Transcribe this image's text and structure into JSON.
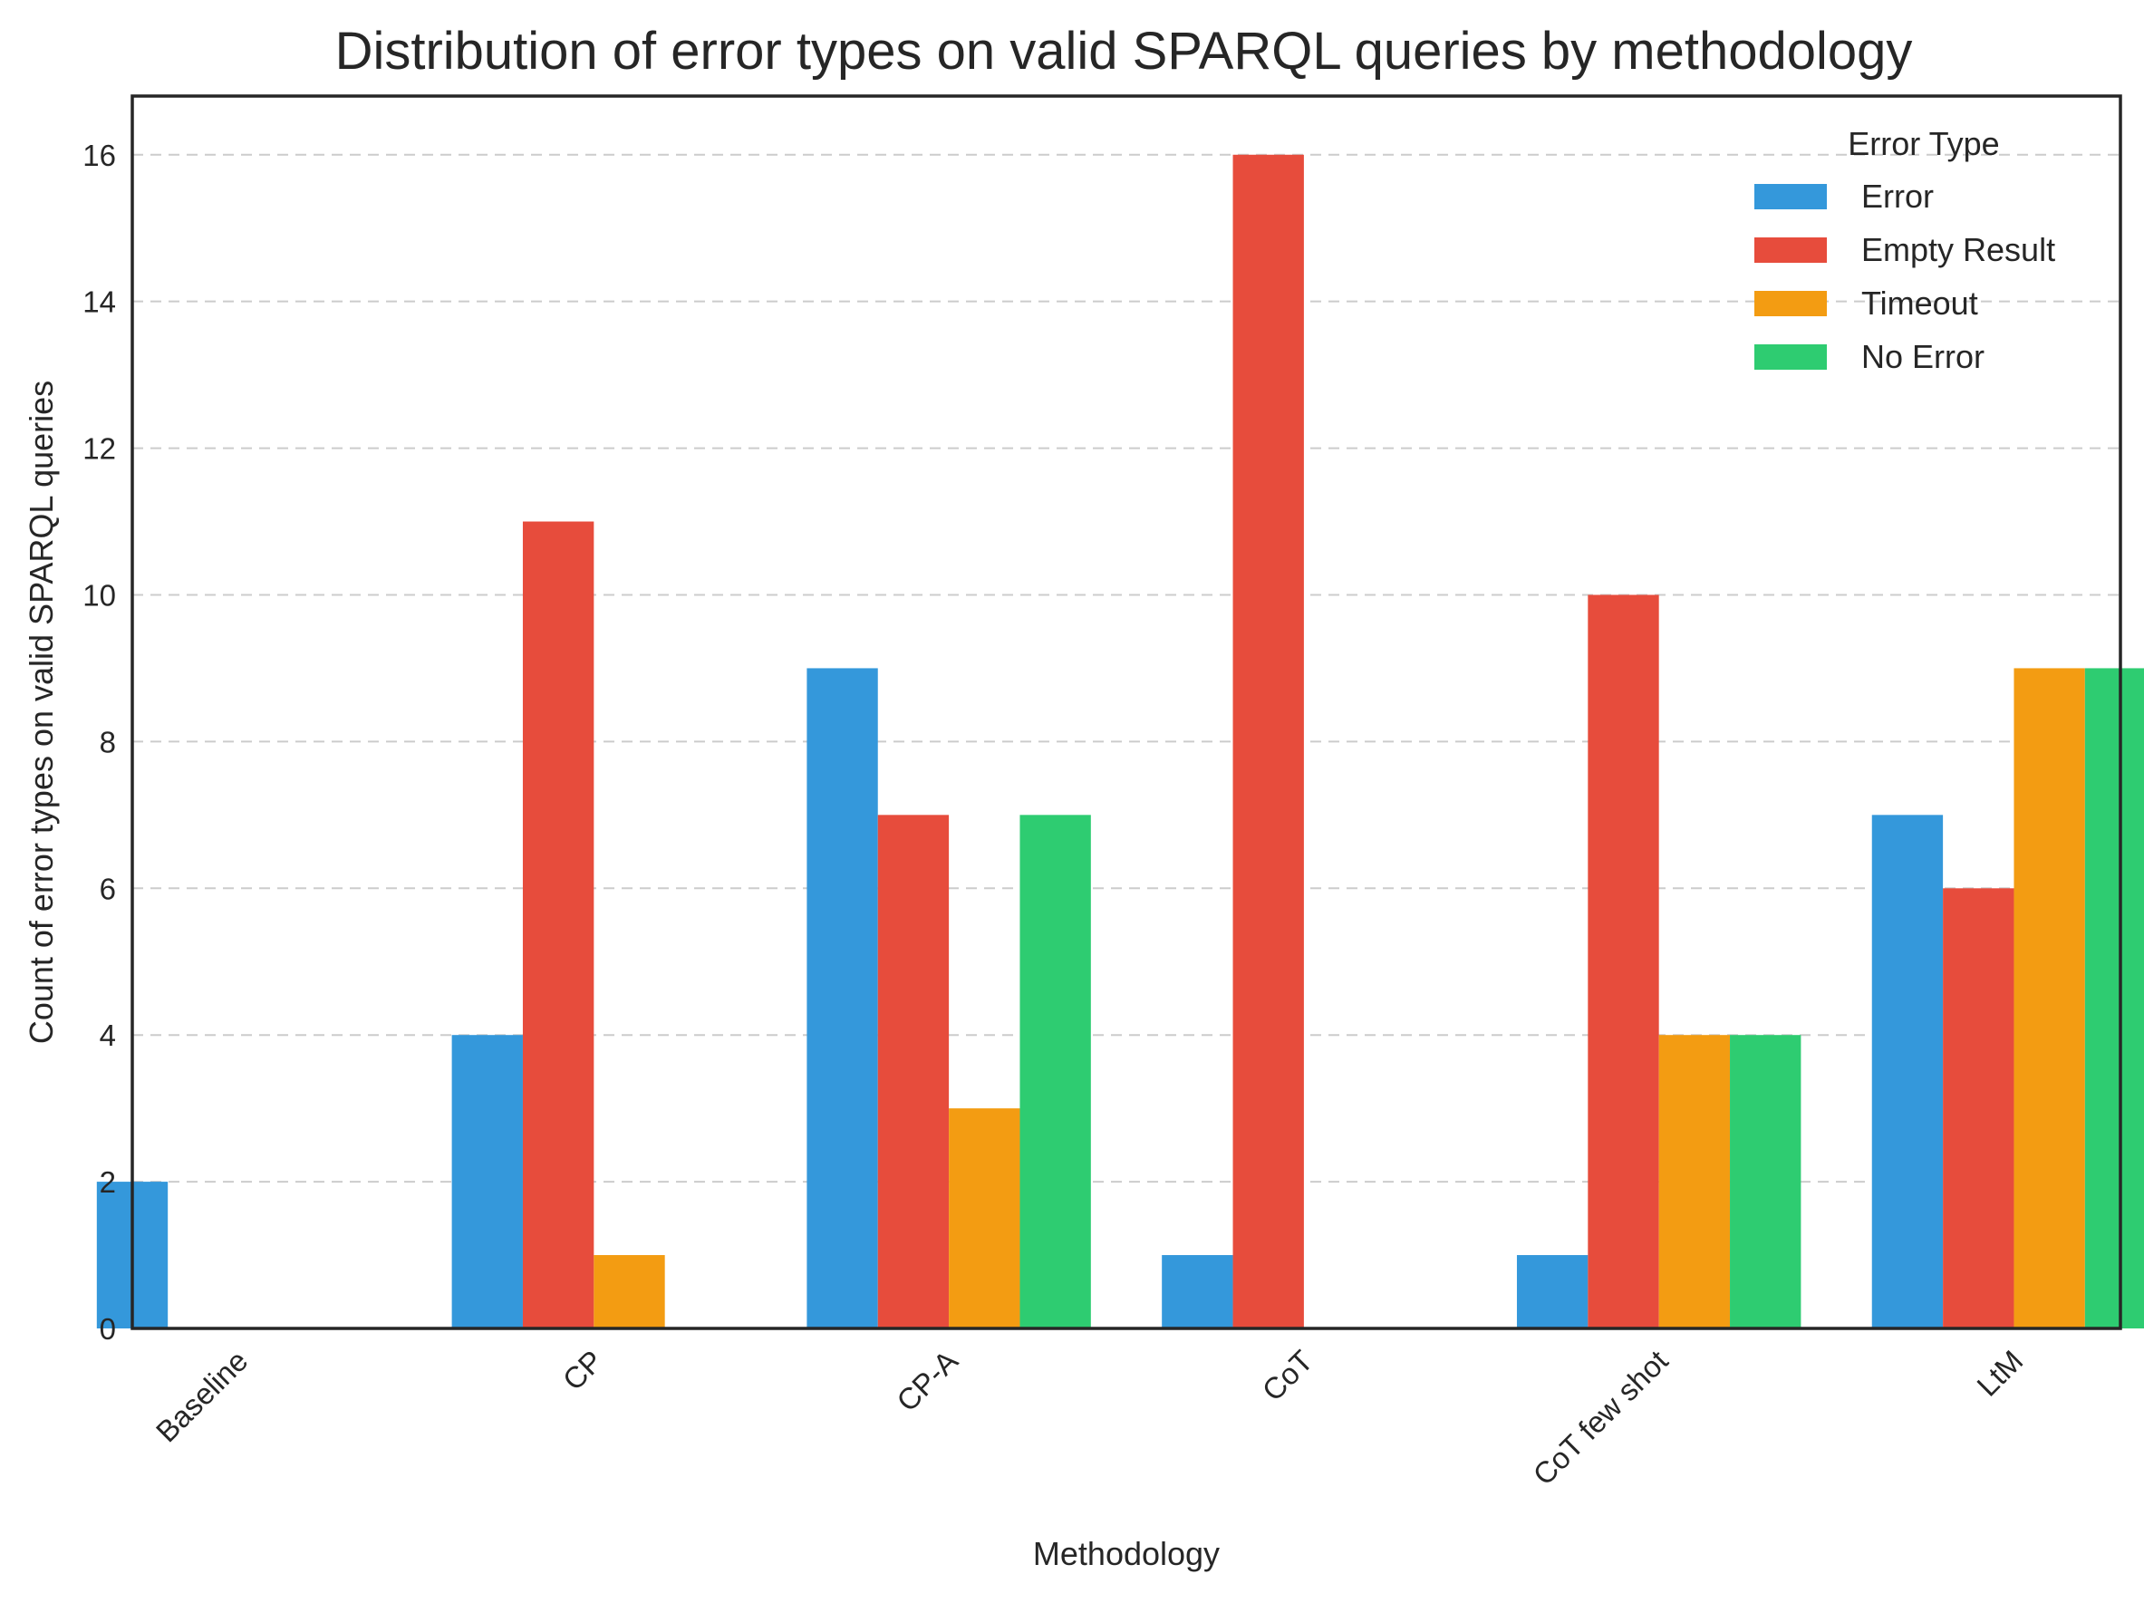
{
  "chart_data": {
    "type": "bar",
    "title": "Distribution of error types on valid SPARQL queries by methodology",
    "xlabel": "Methodology",
    "ylabel": "Count of error types on valid SPARQL queries",
    "categories": [
      "Baseline",
      "CP",
      "CP-A",
      "CoT",
      "CoT few shot",
      "LtM"
    ],
    "series": [
      {
        "name": "Error",
        "color": "#3498db",
        "values": [
          2,
          4,
          9,
          1,
          1,
          7
        ]
      },
      {
        "name": "Empty Result",
        "color": "#e74c3c",
        "values": [
          0,
          11,
          7,
          16,
          10,
          6
        ]
      },
      {
        "name": "Timeout",
        "color": "#f39c12",
        "values": [
          0,
          1,
          3,
          0,
          4,
          9
        ]
      },
      {
        "name": "No Error",
        "color": "#2ecc71",
        "values": [
          0,
          0,
          7,
          0,
          4,
          9
        ]
      }
    ],
    "ylim": [
      0,
      16.8
    ],
    "yticks": [
      0,
      2,
      4,
      6,
      8,
      10,
      12,
      14,
      16
    ],
    "grid": true,
    "legend": {
      "title": "Error Type",
      "placement": "top-right"
    }
  }
}
